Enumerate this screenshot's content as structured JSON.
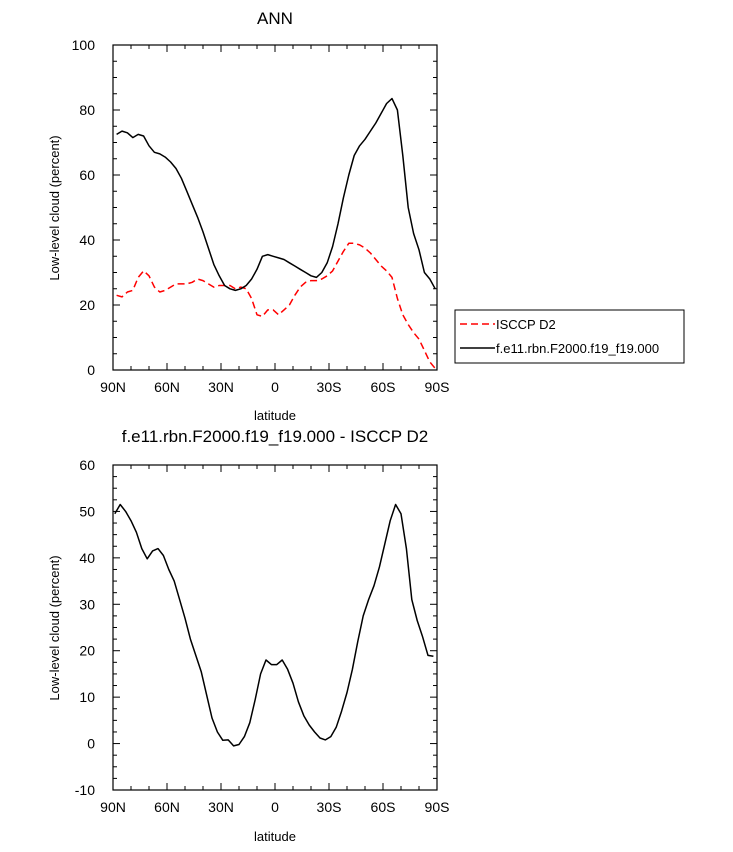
{
  "chart_data": [
    {
      "type": "line",
      "title": "ANN",
      "xlabel": "latitude",
      "ylabel": "Low-level cloud (percent)",
      "xlim": [
        -90,
        90
      ],
      "ylim": [
        0,
        100
      ],
      "x_ticks": [
        -90,
        -60,
        -30,
        0,
        30,
        60,
        90
      ],
      "x_tick_labels": [
        "90N",
        "60N",
        "30N",
        "0",
        "30S",
        "60S",
        "90S"
      ],
      "y_ticks": [
        0,
        20,
        40,
        60,
        80,
        100
      ],
      "y_tick_labels": [
        "0",
        "20",
        "40",
        "60",
        "80",
        "100"
      ],
      "legend": {
        "position": "right",
        "entries": [
          "ISCCP D2",
          "f.e11.rbn.F2000.f19_f19.000"
        ]
      },
      "series": [
        {
          "name": "ISCCP D2",
          "color": "#ff0000",
          "dash": "dashed",
          "x": [
            -88,
            -85,
            -82,
            -79,
            -76,
            -73,
            -70,
            -67,
            -64,
            -61,
            -58,
            -55,
            -52,
            -49,
            -46,
            -43,
            -40,
            -37,
            -34,
            -31,
            -28,
            -25,
            -22,
            -19,
            -16,
            -13,
            -10,
            -7,
            -4,
            -1,
            2,
            5,
            8,
            11,
            14,
            17,
            20,
            23,
            26,
            29,
            32,
            35,
            38,
            41,
            44,
            47,
            50,
            53,
            56,
            59,
            62,
            65,
            68,
            71,
            74,
            77,
            80,
            83,
            86,
            89
          ],
          "y": [
            23,
            22.5,
            24,
            24.5,
            28.5,
            30.5,
            29,
            25.5,
            24,
            24.5,
            25.5,
            26.5,
            26.5,
            26.5,
            27,
            28,
            27.5,
            26.5,
            25.5,
            26,
            26,
            26,
            25,
            25.5,
            25,
            22,
            17,
            16.5,
            18.5,
            18.5,
            17,
            18.5,
            20,
            23,
            25.5,
            27,
            27.5,
            27.5,
            28,
            29,
            30.5,
            33.5,
            36.5,
            39,
            39,
            38.5,
            37.5,
            36,
            34,
            32,
            30.5,
            28.5,
            22,
            17,
            14,
            11.5,
            9.5,
            6,
            2.5,
            0.5
          ]
        },
        {
          "name": "f.e11.rbn.F2000.f19_f19.000",
          "color": "#000000",
          "dash": "solid",
          "x": [
            -88,
            -85,
            -82,
            -79,
            -76,
            -73,
            -70,
            -67,
            -64,
            -61,
            -58,
            -55,
            -52,
            -49,
            -46,
            -43,
            -40,
            -37,
            -34,
            -31,
            -28,
            -25,
            -22,
            -19,
            -16,
            -13,
            -10,
            -7,
            -4,
            -1,
            2,
            5,
            8,
            11,
            14,
            17,
            20,
            23,
            26,
            29,
            32,
            35,
            38,
            41,
            44,
            47,
            50,
            53,
            56,
            59,
            62,
            65,
            68,
            71,
            74,
            77,
            80,
            83,
            86,
            89
          ],
          "y": [
            72.5,
            73.5,
            73,
            71.5,
            72.5,
            72,
            69,
            67,
            66.5,
            65.5,
            64,
            62,
            59,
            55,
            51,
            47,
            42.5,
            37.5,
            32.5,
            29,
            26,
            25,
            24.5,
            25,
            26,
            28,
            31,
            35,
            35.5,
            35,
            34.5,
            34,
            33,
            32,
            31,
            30,
            29,
            28.5,
            30,
            33,
            38,
            45,
            53,
            60,
            66,
            69,
            71,
            73.5,
            76,
            79,
            82,
            83.5,
            80,
            66,
            50,
            42,
            37,
            30,
            28,
            25
          ]
        }
      ]
    },
    {
      "type": "line",
      "title": "f.e11.rbn.F2000.f19_f19.000 - ISCCP D2",
      "xlabel": "latitude",
      "ylabel": "Low-level cloud (percent)",
      "xlim": [
        -90,
        90
      ],
      "ylim": [
        -10,
        60
      ],
      "x_ticks": [
        -90,
        -60,
        -30,
        0,
        30,
        60,
        90
      ],
      "x_tick_labels": [
        "90N",
        "60N",
        "30N",
        "0",
        "30S",
        "60S",
        "90S"
      ],
      "y_ticks": [
        -10,
        0,
        10,
        20,
        30,
        40,
        50,
        60
      ],
      "y_tick_labels": [
        "-10",
        "0",
        "10",
        "20",
        "30",
        "40",
        "50",
        "60"
      ],
      "series": [
        {
          "name": "f.e11.rbn.F2000.f19_f19.000 - ISCCP D2",
          "color": "#000000",
          "dash": "solid",
          "x": [
            -89,
            -86,
            -83,
            -80,
            -77,
            -74,
            -71,
            -68,
            -65,
            -62,
            -59,
            -56,
            -53,
            -50,
            -47,
            -44,
            -41,
            -38,
            -35,
            -32,
            -29,
            -26,
            -23,
            -20,
            -17,
            -14,
            -11,
            -8,
            -5,
            -2,
            1,
            4,
            7,
            10,
            13,
            16,
            19,
            22,
            25,
            28,
            31,
            34,
            37,
            40,
            43,
            46,
            49,
            52,
            55,
            58,
            61,
            64,
            67,
            70,
            73,
            76,
            79,
            82,
            85,
            88
          ],
          "y": [
            49.5,
            51.5,
            50,
            48,
            45.5,
            42,
            39.8,
            41.5,
            42,
            40.5,
            37.5,
            35,
            31,
            27,
            22.5,
            19,
            15.5,
            10.5,
            5.5,
            2.5,
            0.7,
            0.8,
            -0.5,
            -0.2,
            1.5,
            4.5,
            9.5,
            15,
            18,
            17,
            17,
            18,
            16,
            13,
            9,
            6,
            4,
            2.5,
            1.2,
            0.8,
            1.5,
            3.5,
            7,
            11,
            16,
            22,
            27.5,
            31,
            34,
            38,
            43,
            48,
            51.5,
            49.5,
            42,
            31,
            26.5,
            23,
            19,
            18.8
          ]
        }
      ]
    }
  ]
}
